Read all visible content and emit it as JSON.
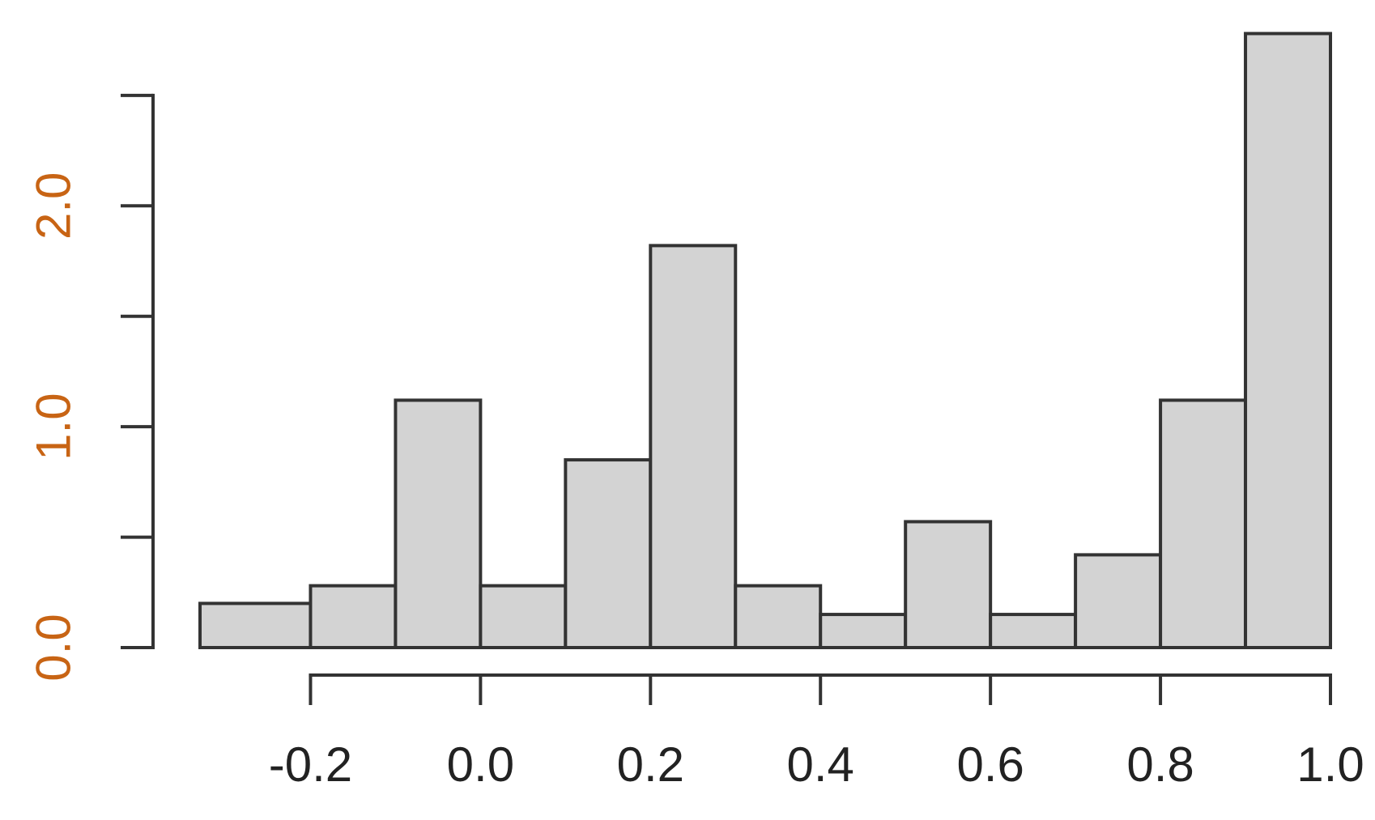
{
  "chart_data": {
    "type": "bar",
    "title": "",
    "xlabel": "",
    "ylabel": "",
    "bins": [
      {
        "start": -0.33,
        "end": -0.2,
        "value": 0.2
      },
      {
        "start": -0.2,
        "end": -0.1,
        "value": 0.28
      },
      {
        "start": -0.1,
        "end": 0.0,
        "value": 1.12
      },
      {
        "start": 0.0,
        "end": 0.1,
        "value": 0.28
      },
      {
        "start": 0.1,
        "end": 0.2,
        "value": 0.85
      },
      {
        "start": 0.2,
        "end": 0.3,
        "value": 1.82
      },
      {
        "start": 0.3,
        "end": 0.4,
        "value": 0.28
      },
      {
        "start": 0.4,
        "end": 0.5,
        "value": 0.15
      },
      {
        "start": 0.5,
        "end": 0.6,
        "value": 0.57
      },
      {
        "start": 0.6,
        "end": 0.7,
        "value": 0.15
      },
      {
        "start": 0.7,
        "end": 0.8,
        "value": 0.42
      },
      {
        "start": 0.8,
        "end": 0.9,
        "value": 1.12
      },
      {
        "start": 0.9,
        "end": 1.0,
        "value": 2.78
      }
    ],
    "xlim": [
      -0.33,
      1.0
    ],
    "ylim": [
      0,
      2.8
    ],
    "x_ticks": [
      -0.2,
      0.0,
      0.2,
      0.4,
      0.6,
      0.8,
      1.0
    ],
    "x_tick_labels": [
      "-0.2",
      "0.0",
      "0.2",
      "0.4",
      "0.6",
      "0.8",
      "1.0"
    ],
    "y_ticks": [
      0.0,
      0.5,
      1.0,
      1.5,
      2.0,
      2.5
    ],
    "y_tick_labels": [
      "0.0",
      "",
      "1.0",
      "",
      "2.0",
      ""
    ],
    "grid": false,
    "colors": {
      "bar_fill": "#d3d3d3",
      "bar_stroke": "#333333",
      "axis": "#333333",
      "x_label_text": "#222222",
      "y_label_text": "#c86414"
    }
  }
}
